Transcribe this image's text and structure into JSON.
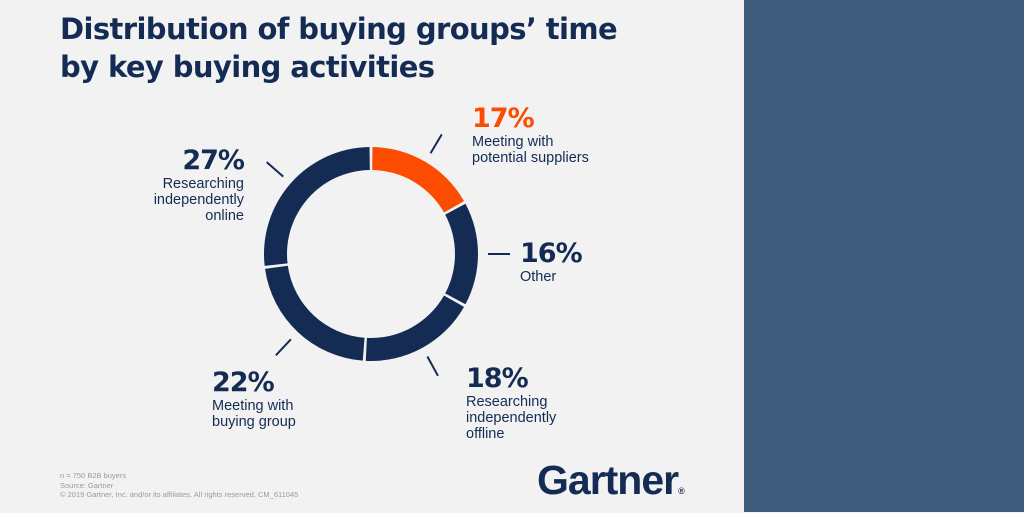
{
  "title": {
    "line1": "Distribution of buying groups’ time",
    "line2": "by key buying activities"
  },
  "colors": {
    "navy": "#142c54",
    "accent": "#fc4c02",
    "background": "#f2f2f2",
    "panel": "#3f5b7b",
    "footnote": "#9a9a9a"
  },
  "chart_data": {
    "type": "pie",
    "title": "Distribution of buying groups’ time by key buying activities",
    "start_angle_deg": 0,
    "direction": "clockwise",
    "segments": [
      {
        "label": "Meeting with potential suppliers",
        "value": 17,
        "value_label": "17%",
        "color": "#fc4c02"
      },
      {
        "label": "Other",
        "value": 16,
        "value_label": "16%",
        "color": "#142c54"
      },
      {
        "label": "Researching independently offline",
        "value": 18,
        "value_label": "18%",
        "color": "#142c54"
      },
      {
        "label": "Meeting with buying group",
        "value": 22,
        "value_label": "22%",
        "color": "#142c54"
      },
      {
        "label": "Researching independently online",
        "value": 27,
        "value_label": "27%",
        "color": "#142c54"
      }
    ]
  },
  "labels": {
    "suppliers": {
      "pct": "17%",
      "line1": "Meeting with",
      "line2": "potential suppliers"
    },
    "other": {
      "pct": "16%",
      "line1": "Other"
    },
    "offline": {
      "pct": "18%",
      "line1": "Researching",
      "line2": "independently",
      "line3": "offline"
    },
    "group": {
      "pct": "22%",
      "line1": "Meeting with",
      "line2": "buying group"
    },
    "online": {
      "pct": "27%",
      "line1": "Researching",
      "line2": "independently",
      "line3": "online"
    }
  },
  "footnote": {
    "line1": "n = 750 B2B buyers",
    "line2": "Source: Gartner",
    "line3": "© 2019 Gartner, Inc. and/or its affiliates. All rights reserved. CM_611045"
  },
  "logo": {
    "text": "Gartner",
    "mark": "®"
  }
}
